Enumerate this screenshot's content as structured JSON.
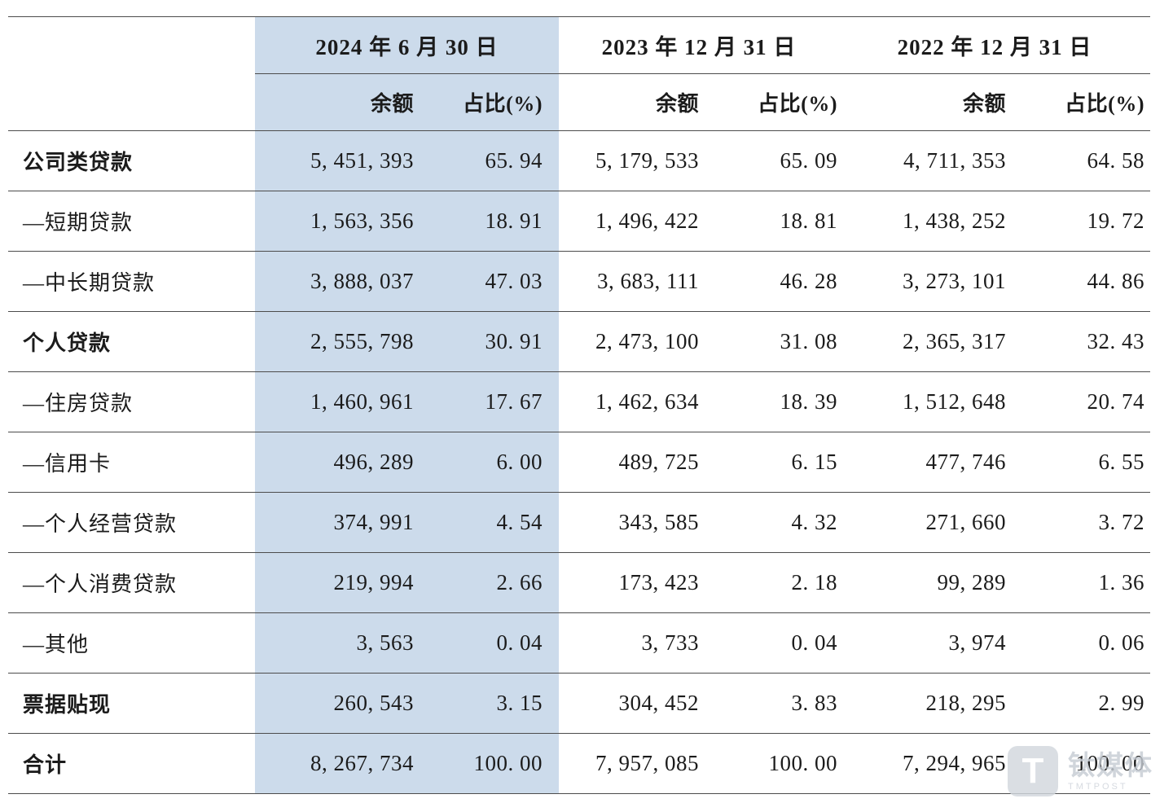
{
  "chart_data": {
    "type": "table",
    "column_groups": [
      "2024 年 6 月 30 日",
      "2023 年 12 月 31 日",
      "2022 年 12 月 31 日"
    ],
    "sub_columns": [
      "余额",
      "占比(%)"
    ],
    "highlighted_column_group": "2024 年 6 月 30 日",
    "highlight_color": "#ccdbeb",
    "rows": [
      {
        "label": "公司类贷款",
        "bold": true,
        "cells": [
          "5, 451, 393",
          "65. 94",
          "5, 179, 533",
          "65. 09",
          "4, 711, 353",
          "64. 58"
        ]
      },
      {
        "label": "—短期贷款",
        "bold": false,
        "cells": [
          "1, 563, 356",
          "18. 91",
          "1, 496, 422",
          "18. 81",
          "1, 438, 252",
          "19. 72"
        ]
      },
      {
        "label": "—中长期贷款",
        "bold": false,
        "cells": [
          "3, 888, 037",
          "47. 03",
          "3, 683, 111",
          "46. 28",
          "3, 273, 101",
          "44. 86"
        ]
      },
      {
        "label": "个人贷款",
        "bold": true,
        "cells": [
          "2, 555, 798",
          "30. 91",
          "2, 473, 100",
          "31. 08",
          "2, 365, 317",
          "32. 43"
        ]
      },
      {
        "label": "—住房贷款",
        "bold": false,
        "cells": [
          "1, 460, 961",
          "17. 67",
          "1, 462, 634",
          "18. 39",
          "1, 512, 648",
          "20. 74"
        ]
      },
      {
        "label": "—信用卡",
        "bold": false,
        "cells": [
          "496, 289",
          "6. 00",
          "489, 725",
          "6. 15",
          "477, 746",
          "6. 55"
        ]
      },
      {
        "label": "—个人经营贷款",
        "bold": false,
        "cells": [
          "374, 991",
          "4. 54",
          "343, 585",
          "4. 32",
          "271, 660",
          "3. 72"
        ]
      },
      {
        "label": "—个人消费贷款",
        "bold": false,
        "cells": [
          "219, 994",
          "2. 66",
          "173, 423",
          "2. 18",
          "99, 289",
          "1. 36"
        ]
      },
      {
        "label": "—其他",
        "bold": false,
        "cells": [
          "3, 563",
          "0. 04",
          "3, 733",
          "0. 04",
          "3, 974",
          "0. 06"
        ]
      },
      {
        "label": "票据贴现",
        "bold": true,
        "cells": [
          "260, 543",
          "3. 15",
          "304, 452",
          "3. 83",
          "218, 295",
          "2. 99"
        ]
      },
      {
        "label": "合计",
        "bold": true,
        "cells": [
          "8, 267, 734",
          "100. 00",
          "7, 957, 085",
          "100. 00",
          "7, 294, 965",
          "100. 00"
        ]
      }
    ]
  },
  "watermark": {
    "logo_letter": "T",
    "name": "钛媒体",
    "subtitle": "TMTPOST"
  }
}
